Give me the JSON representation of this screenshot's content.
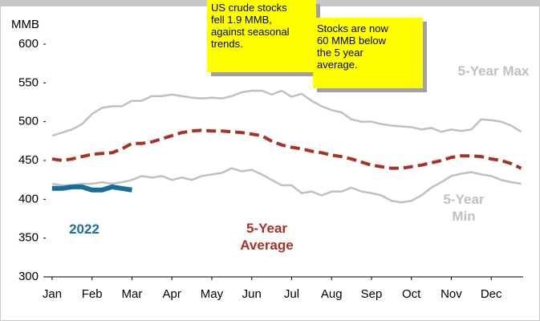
{
  "chart_data": {
    "type": "line",
    "y_label": "MMB",
    "annotations": [
      "US crude stocks\nfell 1.9 MMB,\nagainst seasonal\ntrends.",
      "Stocks are now\n60 MMB below\nthe 5 year\naverage."
    ],
    "x": [
      0,
      0.25,
      0.5,
      0.75,
      1,
      1.25,
      1.5,
      1.75,
      2,
      2.25,
      2.5,
      2.75,
      3,
      3.25,
      3.5,
      3.75,
      4,
      4.25,
      4.5,
      4.75,
      5,
      5.25,
      5.5,
      5.75,
      6,
      6.25,
      6.5,
      6.75,
      7,
      7.25,
      7.5,
      7.75,
      8,
      8.25,
      8.5,
      8.75,
      9,
      9.25,
      9.5,
      9.75,
      10,
      10.25,
      10.5,
      10.75,
      11,
      11.25,
      11.5,
      11.75
    ],
    "xlim": [
      -0.16,
      11.8
    ],
    "xticks": [
      {
        "value": 0,
        "label": "Jan"
      },
      {
        "value": 1,
        "label": "Feb"
      },
      {
        "value": 2,
        "label": "Mar"
      },
      {
        "value": 3,
        "label": "Apr"
      },
      {
        "value": 4,
        "label": "May"
      },
      {
        "value": 5,
        "label": "Jun"
      },
      {
        "value": 6,
        "label": "Jul"
      },
      {
        "value": 7,
        "label": "Aug"
      },
      {
        "value": 8,
        "label": "Sep"
      },
      {
        "value": 9,
        "label": "Oct"
      },
      {
        "value": 10,
        "label": "Nov"
      },
      {
        "value": 11,
        "label": "Dec"
      }
    ],
    "ylim": [
      300,
      600
    ],
    "yticks": [
      300,
      350,
      400,
      450,
      500,
      550,
      600
    ],
    "series": [
      {
        "name": "5-Year Max",
        "color": "#c0c0c0",
        "dashed": false,
        "values": [
          482,
          486,
          490,
          497,
          510,
          518,
          520,
          520,
          527,
          527,
          533,
          533,
          535,
          533,
          531,
          530,
          531,
          530,
          533,
          538,
          540,
          540,
          535,
          540,
          532,
          536,
          527,
          520,
          515,
          512,
          503,
          500,
          500,
          497,
          495,
          494,
          493,
          490,
          492,
          487,
          490,
          488,
          490,
          503,
          502,
          500,
          495,
          487
        ]
      },
      {
        "name": "5-Year Min",
        "color": "#c0c0c0",
        "dashed": false,
        "values": [
          420,
          418,
          418,
          420,
          420,
          422,
          420,
          422,
          425,
          430,
          428,
          430,
          425,
          428,
          425,
          430,
          432,
          434,
          440,
          436,
          438,
          432,
          425,
          418,
          418,
          408,
          410,
          405,
          410,
          410,
          415,
          410,
          408,
          405,
          398,
          396,
          398,
          405,
          415,
          422,
          430,
          433,
          435,
          432,
          430,
          425,
          422,
          420
        ]
      },
      {
        "name": "5-Year Average",
        "color": "#a83228",
        "dashed": true,
        "values": [
          452,
          450,
          452,
          455,
          458,
          459,
          460,
          465,
          472,
          472,
          474,
          478,
          482,
          486,
          488,
          489,
          488,
          488,
          487,
          486,
          484,
          482,
          475,
          470,
          467,
          465,
          462,
          460,
          457,
          455,
          452,
          448,
          444,
          442,
          440,
          440,
          442,
          444,
          447,
          450,
          454,
          456,
          456,
          455,
          452,
          450,
          446,
          440
        ]
      },
      {
        "name": "2022",
        "color": "#1a6d9b",
        "dashed": false,
        "values": [
          414,
          414,
          416,
          416,
          412,
          412,
          416,
          414,
          412,
          null,
          null,
          null,
          null,
          null,
          null,
          null,
          null,
          null,
          null,
          null,
          null,
          null,
          null,
          null,
          null,
          null,
          null,
          null,
          null,
          null,
          null,
          null,
          null,
          null,
          null,
          null,
          null,
          null,
          null,
          null,
          null,
          null,
          null,
          null,
          null,
          null,
          null,
          null
        ]
      }
    ]
  }
}
